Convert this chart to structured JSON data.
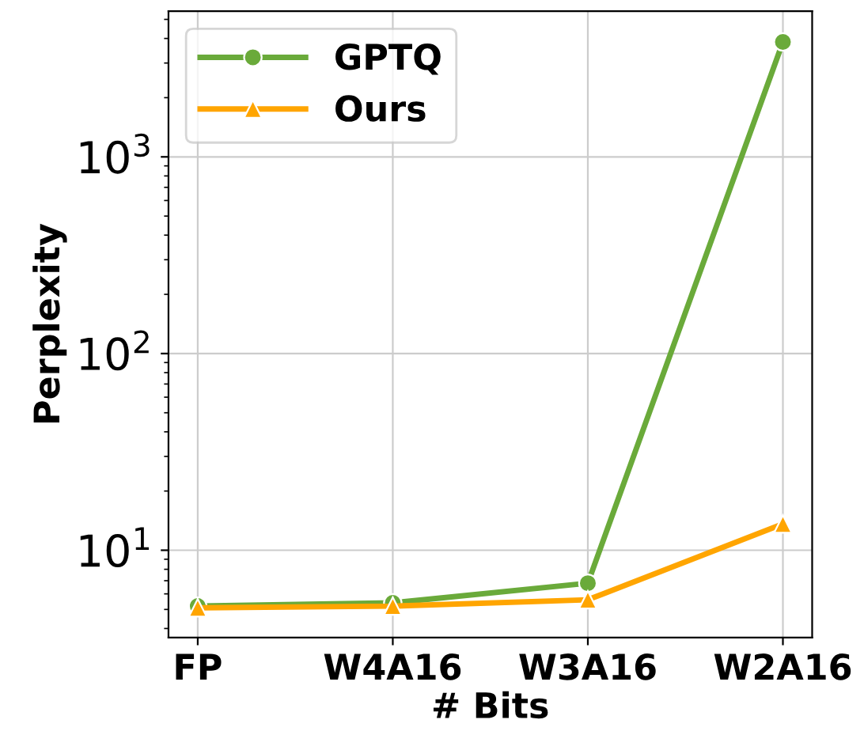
{
  "chart_data": {
    "type": "line",
    "xlabel": "# Bits",
    "ylabel": "Perplexity",
    "categories": [
      "FP",
      "W4A16",
      "W3A16",
      "W2A16"
    ],
    "series": [
      {
        "name": "GPTQ",
        "color": "#6aaa3a",
        "marker": "circle",
        "values": [
          5.2,
          5.4,
          6.8,
          3840
        ]
      },
      {
        "name": "Ours",
        "color": "#ffa500",
        "marker": "triangle",
        "values": [
          5.1,
          5.2,
          5.6,
          13.6
        ]
      }
    ],
    "log": "y",
    "ylim": [
      3.6,
      5500
    ],
    "yticks": [
      {
        "value": 10,
        "label": "10$^{1}$"
      },
      {
        "value": 100,
        "label": "10$^{2}$"
      },
      {
        "value": 1000,
        "label": "10$^{3}$"
      }
    ],
    "grid": true,
    "legend": "top left"
  }
}
